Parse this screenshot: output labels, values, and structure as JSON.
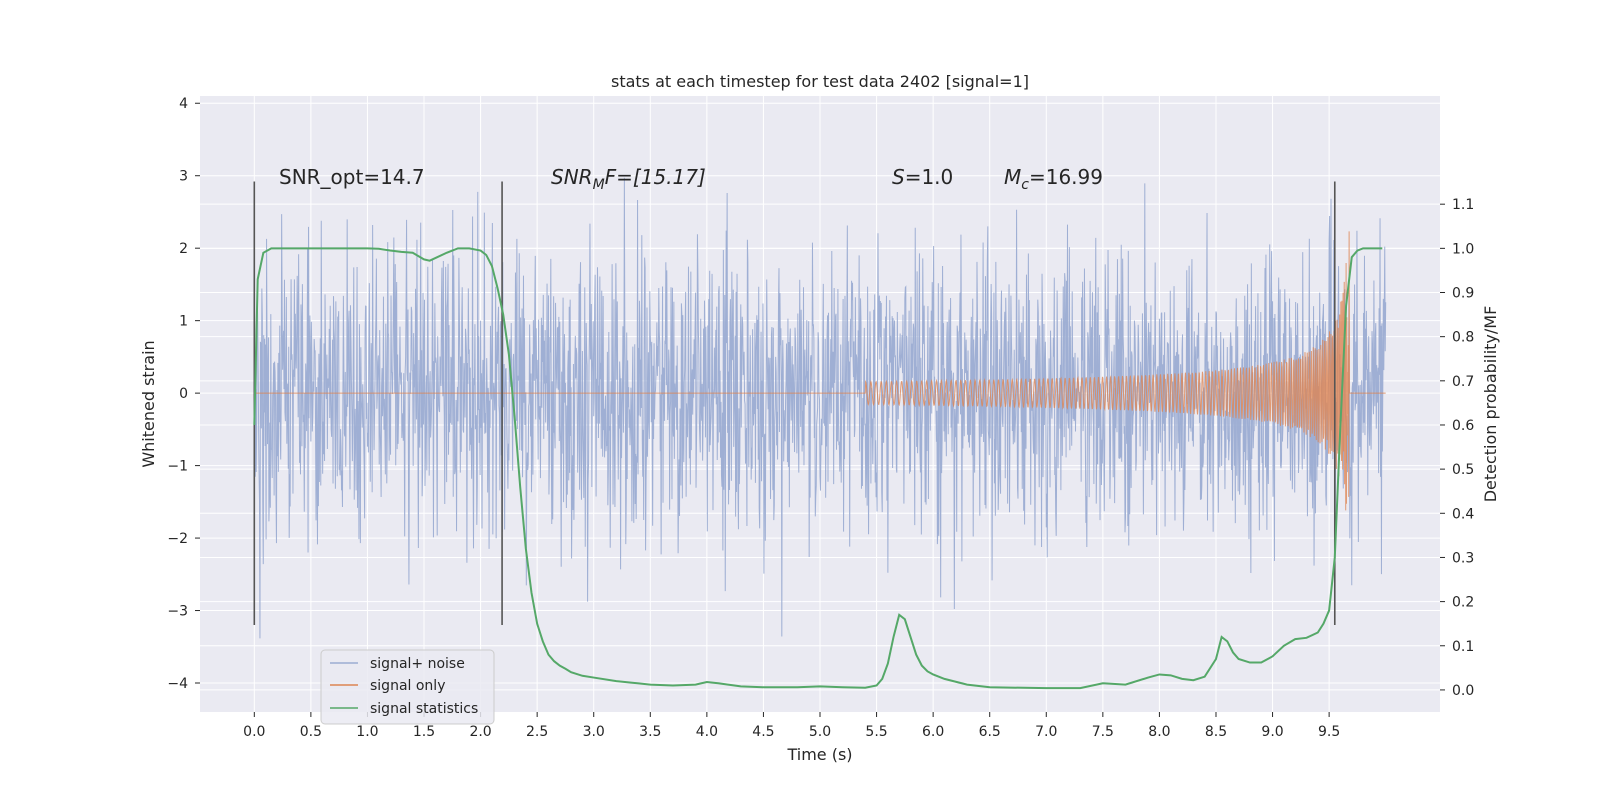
{
  "chart_data": {
    "type": "line",
    "title": "stats at each timestep for test data 2402 [signal=1]",
    "xlabel": "Time (s)",
    "ylabel": "Whitened strain",
    "y2label": "Detection probability/MF",
    "xlim": [
      -0.48,
      10.48
    ],
    "ylim": [
      -4.4,
      4.1
    ],
    "y2lim": [
      -0.05,
      1.345
    ],
    "xticks": [
      "0.0",
      "0.5",
      "1.0",
      "1.5",
      "2.0",
      "2.5",
      "3.0",
      "3.5",
      "4.0",
      "4.5",
      "5.0",
      "5.5",
      "6.0",
      "6.5",
      "7.0",
      "7.5",
      "8.0",
      "8.5",
      "9.0",
      "9.5"
    ],
    "yticks": [
      "4",
      "3",
      "2",
      "1",
      "0",
      "−1",
      "−2",
      "−3",
      "−4"
    ],
    "y2ticks": [
      "1.1",
      "1.0",
      "0.9",
      "0.8",
      "0.7",
      "0.6",
      "0.5",
      "0.4",
      "0.3",
      "0.2",
      "0.1",
      "0.0"
    ],
    "grid": true,
    "legend_position": "lower-left",
    "annotations": {
      "snr_opt": "SNR_opt=14.7",
      "snr_mf_base": "SNR",
      "snr_mf_sub": "M",
      "snr_mf_rest": "F=[15.17]",
      "s_var": "S",
      "s_rest": "=1.0",
      "mc_var": "M",
      "mc_sub": "c",
      "mc_rest": "=16.99"
    },
    "detection_window_lines_x": [
      0.0,
      2.19,
      9.55
    ],
    "series": [
      {
        "name": "signal+ noise",
        "color": "#9bacd2",
        "description_type": "whitened strain, dense noise",
        "x_range": [
          0.0,
          10.0
        ],
        "envelope_sigma": 0.95
      },
      {
        "name": "signal only",
        "color": "#dd8452",
        "description_type": "chirp",
        "x_range": [
          0.0,
          10.0
        ],
        "peak_time": 9.68,
        "peak_amplitude": 2.3
      },
      {
        "name": "signal statistics",
        "color": "#55a868",
        "axis": "right",
        "x": [
          0.0,
          0.03,
          0.08,
          0.15,
          0.2,
          0.3,
          0.5,
          0.8,
          1.0,
          1.1,
          1.2,
          1.3,
          1.4,
          1.5,
          1.55,
          1.6,
          1.7,
          1.8,
          1.9,
          2.0,
          2.05,
          2.1,
          2.15,
          2.2,
          2.25,
          2.3,
          2.35,
          2.4,
          2.45,
          2.5,
          2.55,
          2.6,
          2.65,
          2.7,
          2.75,
          2.8,
          2.9,
          3.0,
          3.2,
          3.5,
          3.7,
          3.9,
          4.0,
          4.1,
          4.3,
          4.5,
          4.8,
          5.0,
          5.2,
          5.4,
          5.5,
          5.55,
          5.6,
          5.65,
          5.7,
          5.75,
          5.8,
          5.85,
          5.9,
          5.95,
          6.0,
          6.1,
          6.3,
          6.5,
          7.0,
          7.3,
          7.5,
          7.7,
          7.9,
          8.0,
          8.1,
          8.2,
          8.3,
          8.4,
          8.5,
          8.55,
          8.6,
          8.65,
          8.7,
          8.8,
          8.9,
          9.0,
          9.1,
          9.2,
          9.3,
          9.4,
          9.45,
          9.5,
          9.55,
          9.6,
          9.65,
          9.7,
          9.75,
          9.8,
          9.9,
          9.97
        ],
        "y": [
          0.6,
          0.93,
          0.99,
          1.0,
          1.0,
          1.0,
          1.0,
          1.0,
          1.0,
          0.999,
          0.995,
          0.992,
          0.99,
          0.975,
          0.972,
          0.978,
          0.99,
          1.0,
          1.0,
          0.995,
          0.985,
          0.96,
          0.91,
          0.85,
          0.76,
          0.62,
          0.46,
          0.32,
          0.22,
          0.15,
          0.11,
          0.08,
          0.065,
          0.055,
          0.048,
          0.04,
          0.032,
          0.028,
          0.02,
          0.012,
          0.01,
          0.012,
          0.018,
          0.015,
          0.008,
          0.006,
          0.006,
          0.008,
          0.006,
          0.005,
          0.01,
          0.025,
          0.06,
          0.12,
          0.17,
          0.16,
          0.12,
          0.08,
          0.055,
          0.042,
          0.035,
          0.025,
          0.012,
          0.006,
          0.004,
          0.004,
          0.015,
          0.012,
          0.028,
          0.035,
          0.033,
          0.025,
          0.022,
          0.03,
          0.07,
          0.12,
          0.11,
          0.085,
          0.07,
          0.062,
          0.062,
          0.076,
          0.1,
          0.115,
          0.118,
          0.13,
          0.15,
          0.18,
          0.3,
          0.6,
          0.87,
          0.98,
          0.995,
          1.0,
          1.0,
          1.0
        ]
      }
    ]
  }
}
